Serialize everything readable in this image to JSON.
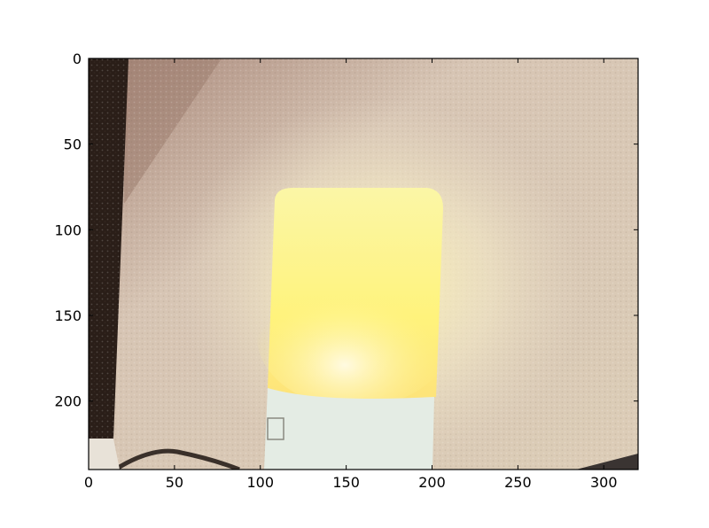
{
  "figure": {
    "x_ticks": [
      "0",
      "50",
      "100",
      "150",
      "200",
      "250",
      "300"
    ],
    "y_ticks": [
      "0",
      "50",
      "100",
      "150",
      "200"
    ],
    "x_range": [
      0,
      320
    ],
    "y_range": [
      0,
      240
    ],
    "y_axis_inverted": true
  },
  "photo": {
    "subject": "glowing night light lamp against textured wall",
    "colors": {
      "wall": "#d8c7b0",
      "dark_edge": "#2a1e18",
      "lamp_glow": "#fff7a0",
      "lamp_base": "#e6efe6",
      "shadow": "#a08878"
    }
  }
}
